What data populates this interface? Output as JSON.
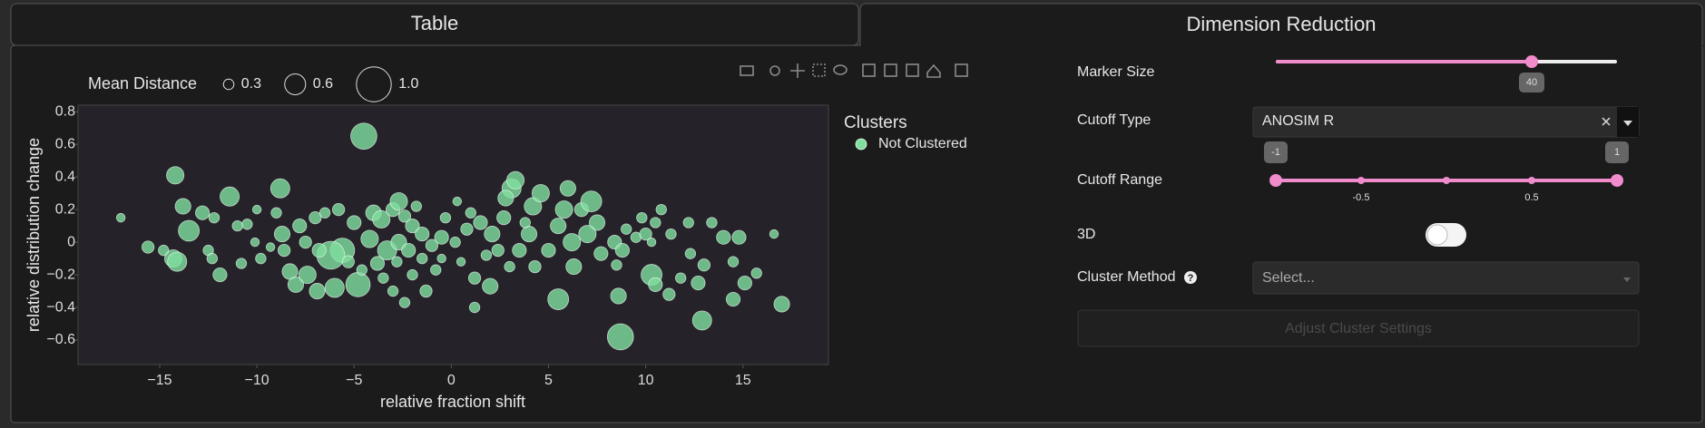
{
  "tabs": [
    "Table",
    "Dimension Reduction"
  ],
  "chart_data": {
    "type": "scatter",
    "xlabel": "relative fraction shift",
    "ylabel": "relative distribution change",
    "xlim": [
      -19.2,
      19.4
    ],
    "ylim": [
      -0.75,
      0.84
    ],
    "xticks": [
      {
        "value": -15,
        "label": "−15"
      },
      {
        "value": -10,
        "label": "−10"
      },
      {
        "value": -5,
        "label": "−5"
      },
      0,
      5,
      10,
      15
    ],
    "yticks": [
      0.8,
      0.6,
      0.4,
      0.2,
      0,
      {
        "value": -0.2,
        "label": "−0.2"
      },
      {
        "value": -0.4,
        "label": "−0.4"
      },
      {
        "value": -0.6,
        "label": "−0.6"
      }
    ],
    "grid": false,
    "legend_title": "Clusters",
    "size_legend": {
      "title": "Mean Distance",
      "values": [
        0.3,
        0.6,
        {
          "value": 1,
          "label": "1.0"
        }
      ]
    },
    "series": [
      {
        "name": "Not Clustered",
        "color": "#80de9f",
        "x": [
          -4.5,
          8.7,
          -4.8,
          -14.2,
          -17,
          -8.8,
          -11.4,
          -13.8,
          -13.5,
          -14.8,
          -14.3,
          -14.1,
          -12.5,
          -12.3,
          -11.9,
          -12.8,
          -12.2,
          -10.5,
          -10.1,
          -9.8,
          -9.3,
          -8.7,
          -8.6,
          -8.3,
          -8.0,
          -7.4,
          -6.9,
          -6.0,
          -5.6,
          -6.2,
          -7.8,
          -7.0,
          -6.5,
          -5.8,
          -5.0,
          -4.0,
          -3.6,
          -3.0,
          -2.4,
          -2.0,
          -4.2,
          -3.3,
          -2.7,
          -2.2,
          -1.5,
          -1.0,
          -0.5,
          0.2,
          -3.8,
          -2.8,
          -2.0,
          -1.5,
          -3.0,
          -2.4,
          -1.3,
          -0.8,
          -0.5,
          0.5,
          1.2,
          1.8,
          1.5,
          2.1,
          2.7,
          3.1,
          3.3,
          2.8,
          4.2,
          4.0,
          3.5,
          3.0,
          2.0,
          1.2,
          4.3,
          5.0,
          5.5,
          5.8,
          6.2,
          6.7,
          7.2,
          7.5,
          7.0,
          7.7,
          6.3,
          5.5,
          8.4,
          8.8,
          8.5,
          9.0,
          9.5,
          10.0,
          10.5,
          10.8,
          10.3,
          8.6,
          10.3,
          10.5,
          11.8,
          12.2,
          11.3,
          12.3,
          13.0,
          12.7,
          12.9,
          13.4,
          14.0,
          14.8,
          14.5,
          15.1,
          14.5,
          15.7,
          16.6,
          17.0,
          11.2,
          -10.0,
          -11.0,
          -9.0,
          -7.5,
          -6.8,
          -5.3,
          -4.6,
          -3.5,
          0.8,
          1.0,
          2.4,
          3.8,
          4.6,
          -1.8,
          -0.3,
          0.3,
          -15.6,
          -10.8,
          9.8,
          6.0,
          -2.7
        ],
        "values": [
          0.65,
          -0.58,
          -0.26,
          0.41,
          0.15,
          0.33,
          0.28,
          0.22,
          0.07,
          -0.05,
          -0.1,
          -0.12,
          -0.05,
          -0.1,
          -0.2,
          0.18,
          0.15,
          0.11,
          0.0,
          -0.1,
          -0.03,
          0.05,
          -0.05,
          -0.18,
          -0.26,
          -0.2,
          -0.3,
          -0.28,
          -0.05,
          -0.08,
          0.1,
          0.15,
          0.18,
          0.2,
          0.12,
          0.18,
          0.14,
          0.2,
          0.16,
          0.1,
          0.02,
          -0.05,
          0.0,
          -0.05,
          0.05,
          -0.02,
          0.03,
          0.0,
          -0.13,
          -0.12,
          -0.2,
          -0.1,
          -0.3,
          -0.37,
          -0.3,
          -0.17,
          -0.1,
          -0.12,
          -0.22,
          -0.08,
          0.12,
          0.05,
          0.15,
          0.33,
          0.38,
          0.27,
          0.22,
          0.05,
          -0.05,
          -0.15,
          -0.27,
          -0.4,
          -0.15,
          -0.05,
          0.1,
          0.2,
          0.0,
          0.2,
          0.25,
          0.12,
          0.05,
          -0.07,
          -0.15,
          -0.35,
          0.0,
          -0.05,
          -0.14,
          0.08,
          0.03,
          0.05,
          0.12,
          0.2,
          0.0,
          -0.33,
          -0.2,
          -0.26,
          -0.22,
          0.12,
          0.05,
          -0.07,
          -0.14,
          -0.25,
          -0.48,
          0.12,
          0.03,
          0.03,
          -0.12,
          -0.25,
          -0.35,
          -0.19,
          0.05,
          -0.38,
          -0.32,
          0.2,
          0.1,
          0.18,
          0.0,
          -0.05,
          -0.12,
          -0.17,
          -0.22,
          0.08,
          0.18,
          -0.05,
          0.12,
          0.3,
          0.22,
          0.15,
          0.25,
          -0.03,
          -0.13,
          0.15,
          0.33,
          0.25
        ],
        "sizes": [
          0.75,
          0.75,
          0.7,
          0.5,
          0.25,
          0.55,
          0.55,
          0.45,
          0.6,
          0.3,
          0.5,
          0.55,
          0.3,
          0.3,
          0.4,
          0.4,
          0.3,
          0.3,
          0.25,
          0.3,
          0.25,
          0.45,
          0.35,
          0.45,
          0.45,
          0.5,
          0.45,
          0.55,
          0.7,
          0.8,
          0.4,
          0.35,
          0.3,
          0.35,
          0.4,
          0.45,
          0.5,
          0.4,
          0.35,
          0.4,
          0.5,
          0.55,
          0.45,
          0.4,
          0.4,
          0.35,
          0.4,
          0.3,
          0.4,
          0.3,
          0.3,
          0.3,
          0.3,
          0.3,
          0.35,
          0.3,
          0.25,
          0.25,
          0.35,
          0.3,
          0.4,
          0.45,
          0.4,
          0.55,
          0.5,
          0.45,
          0.5,
          0.45,
          0.4,
          0.3,
          0.45,
          0.3,
          0.35,
          0.4,
          0.45,
          0.5,
          0.5,
          0.4,
          0.6,
          0.45,
          0.5,
          0.4,
          0.45,
          0.6,
          0.4,
          0.4,
          0.3,
          0.3,
          0.3,
          0.35,
          0.3,
          0.3,
          0.25,
          0.45,
          0.6,
          0.4,
          0.3,
          0.3,
          0.3,
          0.3,
          0.35,
          0.4,
          0.55,
          0.3,
          0.4,
          0.4,
          0.3,
          0.4,
          0.4,
          0.3,
          0.25,
          0.45,
          0.35,
          0.25,
          0.3,
          0.3,
          0.35,
          0.4,
          0.35,
          0.3,
          0.3,
          0.35,
          0.3,
          0.35,
          0.3,
          0.5,
          0.3,
          0.3,
          0.25,
          0.35,
          0.3,
          0.3,
          0.45,
          0.5
        ]
      }
    ]
  },
  "controls": {
    "marker_size": {
      "label": "Marker Size",
      "value": 40
    },
    "cutoff_type": {
      "label": "Cutoff Type",
      "value": "ANOSIM R"
    },
    "cutoff_range": {
      "label": "Cutoff Range",
      "values": [
        -1,
        1
      ],
      "marks": [
        -0.5,
        0.5
      ]
    },
    "toggle_3d": {
      "label": "3D"
    },
    "cluster_method": {
      "label": "Cluster Method",
      "placeholder": "Select..."
    },
    "button": "Adjust Cluster Settings"
  }
}
